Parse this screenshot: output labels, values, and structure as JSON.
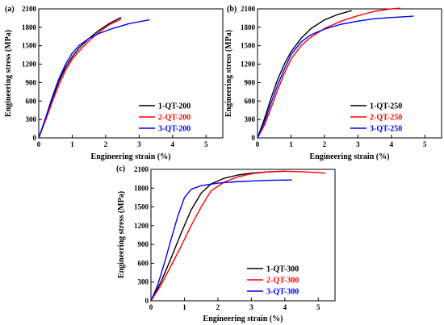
{
  "colors": {
    "series_1": "#000000",
    "series_2": "#ff0000",
    "series_3": "#0000ff"
  },
  "chart_data": [
    {
      "type": "line",
      "panel_label": "(a)",
      "xlabel": "Engineering strain (%)",
      "ylabel": "Engineering stress (MPa)",
      "xlim": [
        0,
        5.5
      ],
      "ylim": [
        0,
        2100
      ],
      "xticks": [
        0,
        1,
        2,
        3,
        4,
        5
      ],
      "yticks": [
        0,
        300,
        600,
        900,
        1200,
        1500,
        1800,
        2100
      ],
      "grid": false,
      "legend": "lower-right",
      "series": [
        {
          "name": "1-QT-200",
          "color": "#000000",
          "x": [
            0,
            0.2,
            0.4,
            0.6,
            0.8,
            1.0,
            1.2,
            1.5,
            1.8,
            2.1,
            2.45
          ],
          "y": [
            0,
            300,
            630,
            920,
            1150,
            1320,
            1460,
            1620,
            1750,
            1860,
            1960
          ]
        },
        {
          "name": "2-QT-200",
          "color": "#ff0000",
          "x": [
            0,
            0.2,
            0.4,
            0.6,
            0.8,
            1.0,
            1.2,
            1.5,
            1.8,
            2.1,
            2.45
          ],
          "y": [
            0,
            280,
            580,
            860,
            1100,
            1280,
            1410,
            1580,
            1720,
            1840,
            1930
          ]
        },
        {
          "name": "3-QT-200",
          "color": "#0000ff",
          "x": [
            0,
            0.2,
            0.4,
            0.6,
            0.8,
            1.0,
            1.2,
            1.5,
            1.8,
            2.2,
            2.7,
            3.3
          ],
          "y": [
            0,
            320,
            660,
            960,
            1200,
            1380,
            1500,
            1620,
            1700,
            1780,
            1860,
            1920
          ]
        }
      ]
    },
    {
      "type": "line",
      "panel_label": "(b)",
      "xlabel": "Engineering strain (%)",
      "ylabel": "Engineering stress (MPa)",
      "xlim": [
        0,
        5.5
      ],
      "ylim": [
        0,
        2100
      ],
      "xticks": [
        0,
        1,
        2,
        3,
        4,
        5
      ],
      "yticks": [
        0,
        300,
        600,
        900,
        1200,
        1500,
        1800,
        2100
      ],
      "grid": false,
      "legend": "lower-right",
      "series": [
        {
          "name": "1-QT-250",
          "color": "#000000",
          "x": [
            0,
            0.2,
            0.4,
            0.6,
            0.8,
            1.0,
            1.3,
            1.6,
            2.0,
            2.4,
            2.8
          ],
          "y": [
            0,
            300,
            640,
            950,
            1200,
            1400,
            1620,
            1780,
            1920,
            2010,
            2070
          ]
        },
        {
          "name": "2-QT-250",
          "color": "#ff0000",
          "x": [
            0,
            0.2,
            0.4,
            0.6,
            0.8,
            1.0,
            1.3,
            1.6,
            2.0,
            2.5,
            3.0,
            3.5,
            4.0,
            4.25
          ],
          "y": [
            0,
            200,
            480,
            780,
            1050,
            1280,
            1500,
            1640,
            1780,
            1900,
            1990,
            2060,
            2100,
            2110
          ]
        },
        {
          "name": "3-QT-250",
          "color": "#0000ff",
          "x": [
            0,
            0.2,
            0.4,
            0.6,
            0.8,
            1.0,
            1.3,
            1.6,
            2.0,
            2.5,
            3.0,
            3.5,
            4.0,
            4.65
          ],
          "y": [
            0,
            250,
            560,
            860,
            1120,
            1350,
            1560,
            1680,
            1770,
            1850,
            1900,
            1940,
            1960,
            1980
          ]
        }
      ]
    },
    {
      "type": "line",
      "panel_label": "(c)",
      "xlabel": "Engineering strain (%)",
      "ylabel": "Engineering stress (MPa)",
      "xlim": [
        0,
        5.5
      ],
      "ylim": [
        0,
        2100
      ],
      "xticks": [
        0,
        1,
        2,
        3,
        4,
        5
      ],
      "yticks": [
        0,
        300,
        600,
        900,
        1200,
        1500,
        1800,
        2100
      ],
      "grid": false,
      "legend": "lower-right",
      "series": [
        {
          "name": "1-QT-300",
          "color": "#000000",
          "x": [
            0,
            0.3,
            0.6,
            0.9,
            1.2,
            1.5,
            1.8,
            2.2,
            2.6,
            3.0,
            3.5,
            4.0
          ],
          "y": [
            0,
            300,
            680,
            1080,
            1450,
            1720,
            1870,
            1960,
            2010,
            2040,
            2060,
            2070
          ]
        },
        {
          "name": "2-QT-300",
          "color": "#ff0000",
          "x": [
            0,
            0.3,
            0.6,
            0.9,
            1.2,
            1.5,
            1.8,
            2.2,
            2.6,
            3.0,
            3.5,
            4.0,
            4.6,
            5.2
          ],
          "y": [
            0,
            250,
            560,
            870,
            1200,
            1500,
            1760,
            1900,
            1980,
            2030,
            2060,
            2070,
            2060,
            2040
          ]
        },
        {
          "name": "3-QT-300",
          "color": "#0000ff",
          "x": [
            0,
            0.2,
            0.4,
            0.6,
            0.8,
            1.0,
            1.2,
            1.5,
            2.0,
            2.5,
            3.0,
            3.5,
            4.2
          ],
          "y": [
            0,
            250,
            600,
            980,
            1350,
            1650,
            1780,
            1840,
            1880,
            1900,
            1915,
            1925,
            1930
          ]
        }
      ]
    }
  ]
}
